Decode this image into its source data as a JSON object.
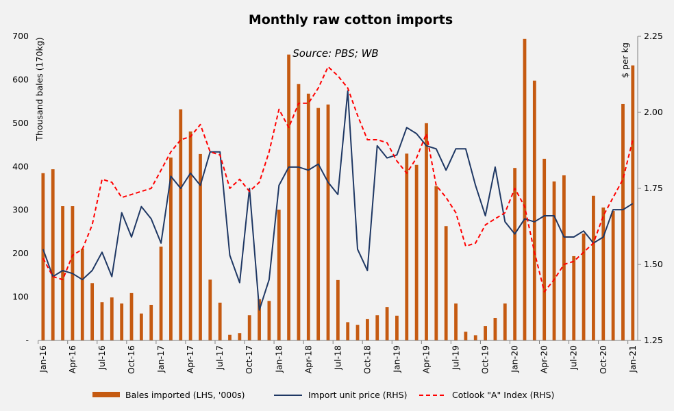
{
  "chart_data": {
    "type": "bar+line",
    "title": "Monthly raw cotton imports",
    "subtitle": "Source: PBS; WB",
    "ylabel_left": "Thousand bales  (170kg)",
    "ylabel_right": "$ per kg",
    "ylim_left": [
      0,
      700
    ],
    "ylim_right": [
      1.25,
      2.25
    ],
    "yticks_left": [
      "-",
      "100",
      "200",
      "300",
      "400",
      "500",
      "600",
      "700"
    ],
    "yticks_right": [
      "1.25",
      "1.50",
      "1.75",
      "2.00",
      "2.25"
    ],
    "grid": false,
    "legend_position": "bottom",
    "categories": [
      "Jan-16",
      "Feb-16",
      "Mar-16",
      "Apr-16",
      "May-16",
      "Jun-16",
      "Jul-16",
      "Aug-16",
      "Sep-16",
      "Oct-16",
      "Nov-16",
      "Dec-16",
      "Jan-17",
      "Feb-17",
      "Mar-17",
      "Apr-17",
      "May-17",
      "Jun-17",
      "Jul-17",
      "Aug-17",
      "Sep-17",
      "Oct-17",
      "Nov-17",
      "Dec-17",
      "Jan-18",
      "Feb-18",
      "Mar-18",
      "Apr-18",
      "May-18",
      "Jun-18",
      "Jul-18",
      "Aug-18",
      "Sep-18",
      "Oct-18",
      "Nov-18",
      "Dec-18",
      "Jan-19",
      "Feb-19",
      "Mar-19",
      "Apr-19",
      "May-19",
      "Jun-19",
      "Jul-19",
      "Aug-19",
      "Sep-19",
      "Oct-19",
      "Nov-19",
      "Dec-19",
      "Jan-20",
      "Feb-20",
      "Mar-20",
      "Apr-20",
      "May-20",
      "Jun-20",
      "Jul-20",
      "Aug-20",
      "Sep-20",
      "Oct-20",
      "Nov-20",
      "Dec-20",
      "Jan-21"
    ],
    "xtick_labels": [
      "Jan-16",
      "Apr-16",
      "Jul-16",
      "Oct-16",
      "Jan-17",
      "Apr-17",
      "Jul-17",
      "Oct-17",
      "Jan-18",
      "Apr-18",
      "Jul-18",
      "Oct-18",
      "Jan-19",
      "Apr-19",
      "Jul-19",
      "Oct-19",
      "Jan-20",
      "Apr-20",
      "Jul-20",
      "Oct-20",
      "Jan-21"
    ],
    "series": [
      {
        "name": "Bales imported (LHS, '000s)",
        "type": "bar",
        "axis": "left",
        "color": "#c55a11",
        "values": [
          385,
          394,
          309,
          309,
          211,
          132,
          88,
          99,
          85,
          109,
          62,
          82,
          216,
          421,
          532,
          481,
          429,
          140,
          87,
          13,
          17,
          58,
          95,
          91,
          301,
          658,
          590,
          568,
          535,
          543,
          139,
          42,
          36,
          49,
          58,
          77,
          57,
          430,
          404,
          500,
          355,
          263,
          85,
          20,
          12,
          33,
          52,
          85,
          397,
          694,
          598,
          418,
          366,
          380,
          194,
          246,
          333,
          306,
          298,
          544,
          633
        ]
      },
      {
        "name": "Import unit price (RHS)",
        "type": "line",
        "axis": "right",
        "color": "#1f3864",
        "values": [
          1.55,
          1.46,
          1.48,
          1.47,
          1.45,
          1.48,
          1.54,
          1.46,
          1.67,
          1.59,
          1.69,
          1.65,
          1.57,
          1.79,
          1.75,
          1.8,
          1.76,
          1.87,
          1.87,
          1.53,
          1.44,
          1.75,
          1.35,
          1.45,
          1.76,
          1.82,
          1.82,
          1.81,
          1.83,
          1.77,
          1.73,
          2.07,
          1.55,
          1.48,
          1.89,
          1.85,
          1.86,
          1.95,
          1.93,
          1.89,
          1.88,
          1.81,
          1.88,
          1.88,
          1.76,
          1.66,
          1.82,
          1.64,
          1.6,
          1.65,
          1.64,
          1.66,
          1.66,
          1.59,
          1.59,
          1.61,
          1.57,
          1.59,
          1.68,
          1.68,
          1.7
        ]
      },
      {
        "name": "Cotlook \"A\" Index (RHS)",
        "type": "line",
        "axis": "right",
        "color": "#ff0000",
        "dashed": true,
        "values": [
          1.52,
          1.46,
          1.45,
          1.53,
          1.55,
          1.63,
          1.78,
          1.77,
          1.72,
          1.73,
          1.74,
          1.75,
          1.81,
          1.87,
          1.91,
          1.92,
          1.96,
          1.87,
          1.86,
          1.75,
          1.78,
          1.74,
          1.77,
          1.87,
          2.01,
          1.95,
          2.03,
          2.03,
          2.08,
          2.15,
          2.12,
          2.08,
          1.99,
          1.91,
          1.91,
          1.9,
          1.84,
          1.8,
          1.85,
          1.93,
          1.76,
          1.72,
          1.67,
          1.56,
          1.57,
          1.63,
          1.65,
          1.67,
          1.75,
          1.69,
          1.54,
          1.41,
          1.45,
          1.5,
          1.51,
          1.54,
          1.57,
          1.66,
          1.72,
          1.78,
          1.91
        ]
      }
    ]
  }
}
